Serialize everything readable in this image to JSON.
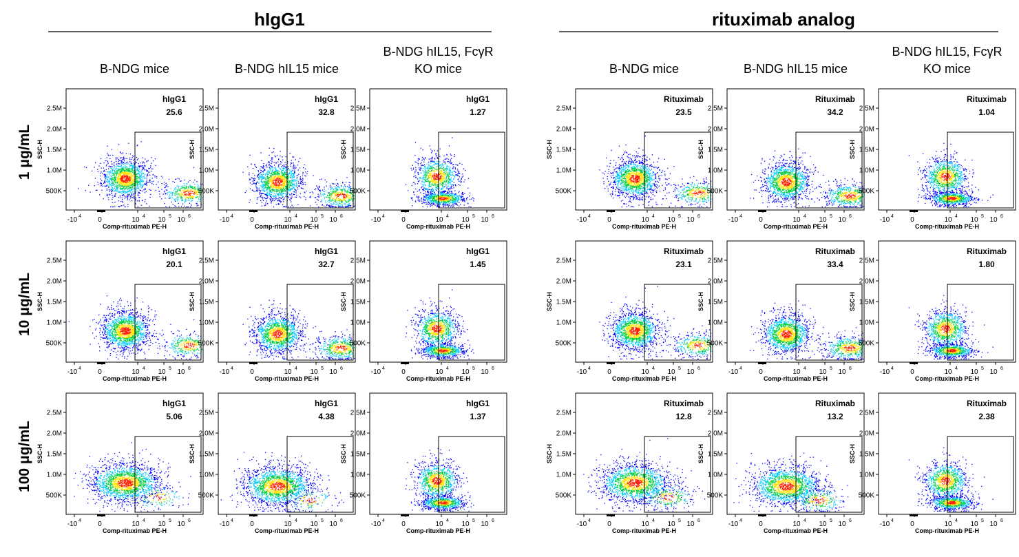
{
  "chart_data": {
    "type": "scatter",
    "groups": [
      {
        "title": "hIgG1",
        "gate_label": "hIgG1"
      },
      {
        "title": "rituximab analog",
        "gate_label": "Rituximab"
      }
    ],
    "columns": [
      "B-NDG mice",
      "B-NDG hIL15 mice",
      "B-NDG hIL15, FcγR KO mice"
    ],
    "column_lines": [
      [
        "B-NDG mice"
      ],
      [
        "B-NDG hIL15 mice"
      ],
      [
        "B-NDG hIL15, FcγR",
        "KO mice"
      ]
    ],
    "rows": [
      "1 μg/mL",
      "10 μg/mL",
      "100 μg/mL"
    ],
    "xlabel": "Comp-rituximab PE-H",
    "ylabel": "SSC-H",
    "x_ticks": [
      "-10^4",
      "0",
      "10^4",
      "10^5",
      "10^6"
    ],
    "y_ticks": [
      "500K",
      "1.0M",
      "1.5M",
      "2.0M",
      "2.5M"
    ],
    "gate_percent": [
      [
        [
          "25.6",
          "32.8",
          "1.27"
        ],
        [
          "23.5",
          "34.2",
          "1.04"
        ]
      ],
      [
        [
          "20.1",
          "32.7",
          "1.45"
        ],
        [
          "23.1",
          "33.4",
          "1.80"
        ]
      ],
      [
        [
          "5.06",
          "4.38",
          "1.37"
        ],
        [
          "12.8",
          "13.2",
          "2.38"
        ]
      ]
    ]
  },
  "colors": {
    "density_low": "#0000ff",
    "density_mid": "#00c8ff",
    "density_midhigh": "#00d040",
    "density_high": "#ffe000",
    "density_peak": "#ff2000"
  }
}
